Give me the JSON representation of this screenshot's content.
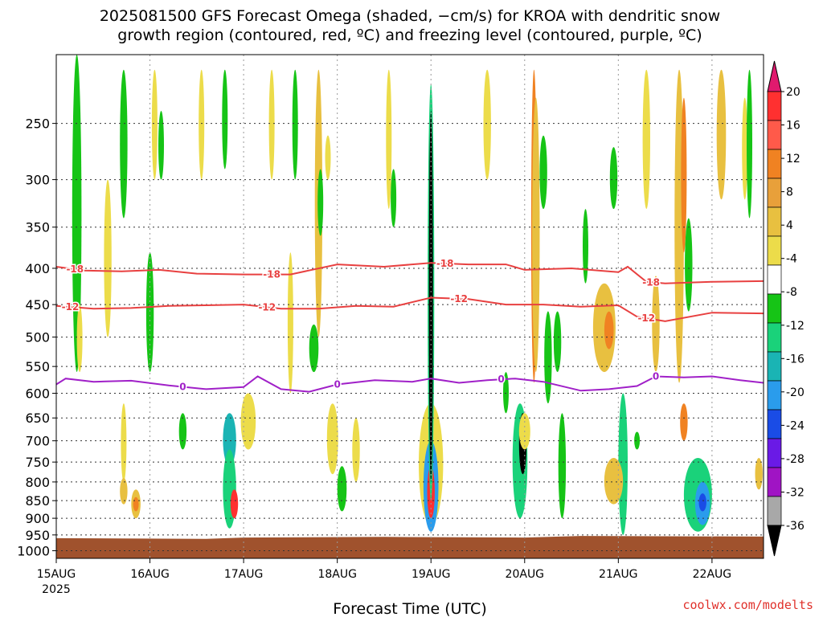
{
  "chart_data": {
    "type": "heatmap",
    "title_lines": [
      "2025081500 GFS Forecast Omega (shaded, −cm/s) for KROA with dendritic snow",
      "growth region (contoured, red, ºC) and freezing level (contoured, purple, ºC)"
    ],
    "xlabel": "Forecast Time (UTC)",
    "x_ticks": [
      "15AUG",
      "16AUG",
      "17AUG",
      "18AUG",
      "19AUG",
      "20AUG",
      "21AUG",
      "22AUG"
    ],
    "x_tick_year": "2025",
    "x_range_days": [
      0,
      7.55
    ],
    "y_ticks": [
      250,
      300,
      350,
      400,
      450,
      500,
      550,
      600,
      650,
      700,
      750,
      800,
      850,
      900,
      950,
      1000
    ],
    "y_range_hpa": [
      200,
      1025
    ],
    "y_scale": "log, inverted",
    "grid": "dotted",
    "colorbar": {
      "ticks": [
        20,
        16,
        12,
        8,
        4,
        -4,
        -8,
        -12,
        -16,
        -20,
        -24,
        -28,
        -32,
        -36
      ],
      "colors": [
        "#e01a6e",
        "#ff3030",
        "#ff5a4a",
        "#f08222",
        "#e8a03a",
        "#e8c040",
        "#ecdc4a",
        "#ffffff",
        "#16c416",
        "#1ad27a",
        "#1ab4b4",
        "#2a9cec",
        "#1a4ce6",
        "#6a1ae6",
        "#a014c4",
        "#a8a8a8",
        "#000000"
      ]
    },
    "contours": [
      {
        "name": "-18",
        "color": "#e84040",
        "x": [
          0,
          0.3,
          0.7,
          1.1,
          1.5,
          2.0,
          2.5,
          3.0,
          3.5,
          4.0,
          4.4,
          4.8,
          5.0,
          5.5,
          6.0,
          6.1,
          6.3,
          6.5,
          7.0,
          7.55
        ],
        "y": [
          398,
          403,
          404,
          402,
          407,
          408,
          408,
          395,
          398,
          393,
          395,
          395,
          402,
          400,
          405,
          398,
          418,
          420,
          418,
          417
        ],
        "labels": [
          {
            "x": 0.2,
            "text": "-18"
          },
          {
            "x": 2.3,
            "text": "-18"
          },
          {
            "x": 4.15,
            "text": "-18"
          },
          {
            "x": 6.35,
            "text": "-18"
          }
        ]
      },
      {
        "name": "-12",
        "color": "#e84040",
        "x": [
          0,
          0.4,
          0.8,
          1.2,
          1.6,
          2.0,
          2.4,
          2.8,
          3.2,
          3.6,
          4.0,
          4.4,
          4.8,
          5.2,
          5.6,
          6.0,
          6.2,
          6.5,
          7.0,
          7.55
        ],
        "y": [
          452,
          456,
          455,
          452,
          451,
          450,
          456,
          456,
          452,
          453,
          440,
          442,
          450,
          450,
          453,
          451,
          468,
          475,
          462,
          463
        ],
        "labels": [
          {
            "x": 0.15,
            "text": "-12"
          },
          {
            "x": 2.25,
            "text": "-12"
          },
          {
            "x": 4.3,
            "text": "-12"
          },
          {
            "x": 6.3,
            "text": "-12"
          }
        ]
      },
      {
        "name": "0",
        "color": "#a020c8",
        "x": [
          0,
          0.1,
          0.4,
          0.8,
          1.2,
          1.6,
          2.0,
          2.15,
          2.4,
          2.7,
          3.0,
          3.4,
          3.8,
          4.0,
          4.3,
          4.6,
          4.9,
          5.2,
          5.6,
          5.9,
          6.2,
          6.4,
          6.7,
          7.0,
          7.3,
          7.55
        ],
        "y": [
          583,
          572,
          578,
          576,
          585,
          592,
          588,
          568,
          592,
          597,
          583,
          575,
          578,
          572,
          580,
          575,
          572,
          578,
          595,
          592,
          586,
          568,
          570,
          568,
          575,
          580
        ],
        "labels": [
          {
            "x": 1.35,
            "text": "0"
          },
          {
            "x": 3.0,
            "text": "0"
          },
          {
            "x": 4.75,
            "text": "0"
          },
          {
            "x": 6.4,
            "text": "0"
          }
        ]
      }
    ]
  },
  "credit": "coolwx.com/modelts"
}
